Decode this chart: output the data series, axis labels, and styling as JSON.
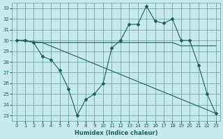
{
  "xlabel": "Humidex (Indice chaleur)",
  "bg_color": "#c8eaea",
  "grid_color": "#5a9a9a",
  "line_color": "#1a6060",
  "xlim": [
    -0.5,
    23.5
  ],
  "ylim": [
    22.5,
    33.5
  ],
  "yticks": [
    23,
    24,
    25,
    26,
    27,
    28,
    29,
    30,
    31,
    32,
    33
  ],
  "xticks": [
    0,
    1,
    2,
    3,
    4,
    5,
    6,
    7,
    8,
    9,
    10,
    11,
    12,
    13,
    14,
    15,
    16,
    17,
    18,
    19,
    20,
    21,
    22,
    23
  ],
  "line1_x": [
    0,
    1,
    2,
    3,
    4,
    5,
    6,
    7,
    8,
    9,
    10,
    11,
    12,
    13,
    14,
    15,
    16,
    17,
    18,
    19,
    20,
    21,
    22,
    23
  ],
  "line1_y": [
    30.0,
    30.0,
    29.8,
    28.5,
    28.2,
    27.2,
    25.5,
    23.0,
    24.5,
    25.0,
    26.0,
    29.3,
    30.0,
    31.5,
    31.5,
    33.2,
    31.8,
    31.6,
    32.0,
    30.0,
    30.0,
    27.7,
    25.0,
    23.2
  ],
  "line2_x": [
    0,
    1,
    2,
    3,
    4,
    10,
    11,
    12,
    13,
    14,
    15,
    16,
    17,
    18,
    19,
    20,
    21,
    22,
    23
  ],
  "line2_y": [
    30.0,
    30.0,
    29.8,
    29.8,
    29.8,
    29.8,
    29.8,
    29.8,
    29.8,
    29.8,
    29.8,
    29.8,
    29.8,
    29.8,
    29.5,
    29.5,
    29.5,
    29.5,
    29.5
  ],
  "line3_x": [
    0,
    3,
    23
  ],
  "line3_y": [
    30.0,
    29.8,
    23.2
  ]
}
